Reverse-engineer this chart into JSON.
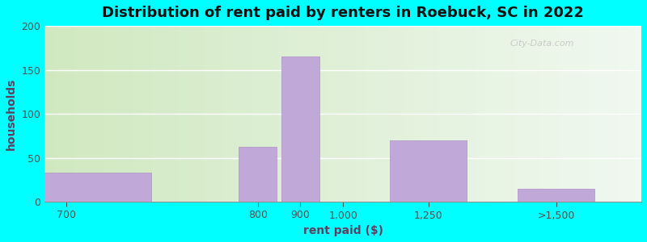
{
  "title": "Distribution of rent paid by renters in Roebuck, SC in 2022",
  "xlabel": "rent paid ($)",
  "ylabel": "households",
  "bar_labels": [
    "700",
    "800",
    "900",
    "1,000",
    "1,250",
    ">1,500"
  ],
  "bar_values": [
    33,
    62,
    165,
    0,
    70,
    15
  ],
  "bar_color": "#c0a8d8",
  "bar_edge_color": "#b090c8",
  "ylim": [
    0,
    200
  ],
  "yticks": [
    0,
    50,
    100,
    150,
    200
  ],
  "outer_bg": "#00ffff",
  "bg_color": "#d8eec8",
  "title_fontsize": 13,
  "axis_label_fontsize": 10,
  "tick_fontsize": 9,
  "tick_label_color": "#505050",
  "axis_label_color": "#604060",
  "title_color": "#101010",
  "watermark": "City-Data.com",
  "x_positions": [
    0,
    4.5,
    5.5,
    6.5,
    8.5,
    11.5
  ],
  "x_widths": [
    4.0,
    0.9,
    0.9,
    0.9,
    1.8,
    1.8
  ],
  "xlim": [
    -0.5,
    13.5
  ]
}
